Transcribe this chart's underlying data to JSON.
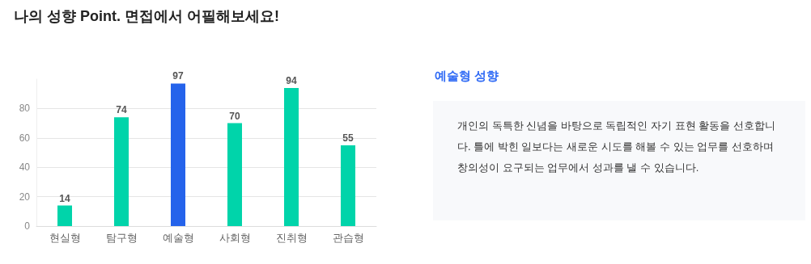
{
  "chart_data": {
    "type": "bar",
    "title": "나의 성향 Point. 면접에서 어필해보세요!",
    "categories": [
      "현실형",
      "탐구형",
      "예술형",
      "사회형",
      "진취형",
      "관습형"
    ],
    "values": [
      14,
      74,
      97,
      70,
      94,
      55
    ],
    "colors": [
      "#00d4aa",
      "#00d4aa",
      "#2563eb",
      "#00d4aa",
      "#00d4aa",
      "#00d4aa"
    ],
    "ylim": [
      0,
      100
    ],
    "yticks": [
      0,
      20,
      40,
      60,
      80
    ],
    "grid": "y",
    "data_labels": true,
    "annotations": [
      "예술형 성향",
      "개인의 독특한 신념을 바탕으로 독립적인 자기 표현 활동을 선호합니다. 틀에 박힌 일보다는 새로운 시도를 해볼 수 있는 업무를 선호하며 창의성이 요구되는 업무에서 성과를 낼 수 있습니다."
    ]
  }
}
